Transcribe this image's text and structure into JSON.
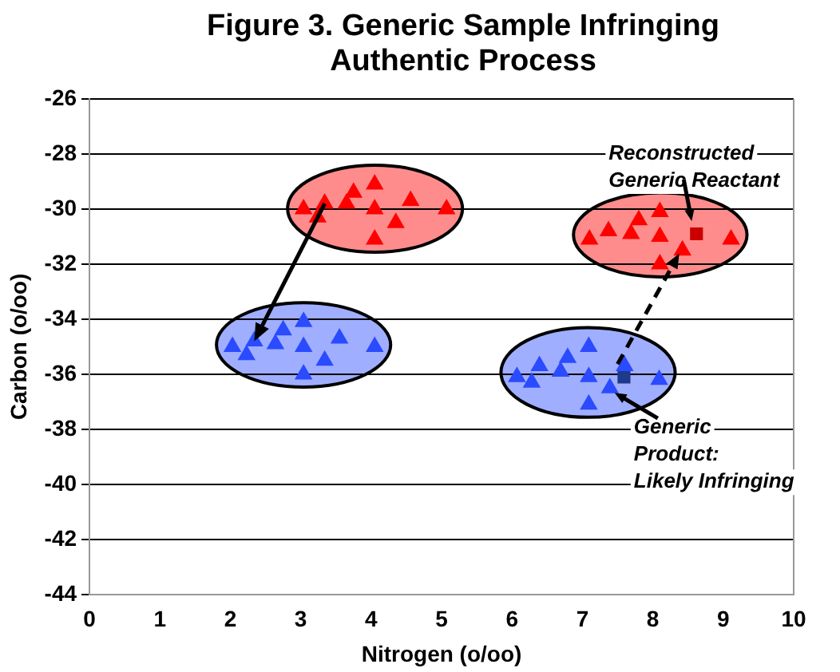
{
  "chart_data": {
    "type": "scatter",
    "title": "Figure 3. Generic Sample Infringing\nAuthentic Process",
    "xlabel": "Nitrogen (o/oo)",
    "ylabel": "Carbon (o/oo)",
    "xlim": [
      0,
      10
    ],
    "xticks": [
      0,
      1,
      2,
      3,
      4,
      5,
      6,
      7,
      8,
      9,
      10
    ],
    "ylim": [
      -44,
      -26
    ],
    "yticks": [
      -44,
      -42,
      -40,
      -38,
      -36,
      -34,
      -32,
      -30,
      -28,
      -26
    ],
    "grid": "y",
    "legend": false,
    "series": [
      {
        "marker": "triangle",
        "color": "#ff0000",
        "x": [
          3.04,
          3.24,
          3.34,
          3.65,
          3.75,
          4.05,
          4.05,
          4.35,
          4.56,
          5.07,
          4.05
        ],
        "values": [
          -30.0,
          -30.3,
          -29.8,
          -29.8,
          -29.4,
          -29.1,
          -30.0,
          -30.5,
          -29.7,
          -30.0,
          -31.1
        ]
      },
      {
        "marker": "triangle",
        "color": "#2b4bff",
        "x": [
          2.03,
          2.23,
          2.34,
          2.64,
          2.75,
          3.04,
          3.04,
          3.34,
          3.55,
          4.05,
          3.04
        ],
        "values": [
          -35.0,
          -35.3,
          -34.8,
          -34.9,
          -34.4,
          -34.1,
          -35.0,
          -35.5,
          -34.7,
          -35.0,
          -36.0
        ]
      },
      {
        "marker": "triangle",
        "color": "#ff0000",
        "x": [
          7.1,
          7.37,
          7.69,
          7.8,
          8.1,
          8.1,
          8.42,
          9.11,
          8.1
        ],
        "values": [
          -31.1,
          -30.8,
          -30.9,
          -30.4,
          -30.1,
          -31.0,
          -31.5,
          -31.1,
          -32.0
        ]
      },
      {
        "marker": "square",
        "color": "#cc0000",
        "x": [
          8.62
        ],
        "values": [
          -30.9
        ]
      },
      {
        "marker": "triangle",
        "color": "#2b4bff",
        "x": [
          6.07,
          6.28,
          6.39,
          6.69,
          6.79,
          7.09,
          7.09,
          7.09,
          7.39,
          7.6,
          8.09
        ],
        "values": [
          -36.1,
          -36.3,
          -35.7,
          -35.9,
          -35.4,
          -35.0,
          -36.1,
          -37.1,
          -36.5,
          -35.7,
          -36.2
        ]
      },
      {
        "marker": "square",
        "color": "#1f3a8c",
        "x": [
          7.59
        ],
        "values": [
          -36.1
        ]
      }
    ],
    "annotations": [
      {
        "text": "Reconstructed\nGeneric Reactant",
        "x": 8.62,
        "y": -30.9
      },
      {
        "text": "Generic\nProduct:\nLikely Infringing",
        "x": 7.39,
        "y": -36.5
      }
    ]
  }
}
